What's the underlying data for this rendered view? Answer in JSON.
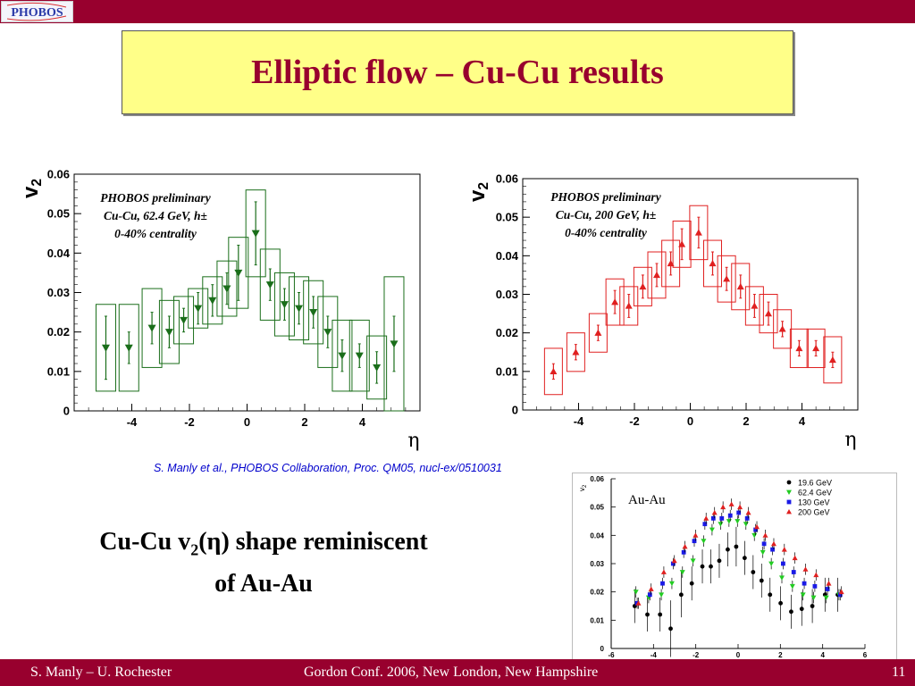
{
  "header": {
    "logo_text": "PHOBOS"
  },
  "slide": {
    "title": "Elliptic flow – Cu-Cu results",
    "citation": "S. Manly et al., PHOBOS Collaboration, Proc. QM05, nucl-ex/0510031",
    "summary": {
      "line1_pre": "Cu-Cu v",
      "line1_sub": "2",
      "line1_post": "(η) shape reminiscent",
      "line2": "of Au-Au"
    }
  },
  "footer": {
    "left": "S. Manly – U. Rochester",
    "center": "Gordon Conf. 2006, New London, New Hampshire",
    "page": "11"
  },
  "colors": {
    "bar": "#98002e",
    "title_box": "#ffff88",
    "title_text": "#98002e",
    "citation": "#0000cc",
    "green": "#1a6e1a",
    "red": "#e02020",
    "blue": "#1a1ae6",
    "lightgreen": "#22cc22"
  },
  "chart_data": [
    {
      "type": "scatter",
      "title": "",
      "annotation": [
        "PHOBOS preliminary",
        "Cu-Cu, 62.4 GeV, h±",
        "0-40% centrality"
      ],
      "xlabel": "η",
      "ylabel": "v2",
      "xlim": [
        -6,
        6
      ],
      "ylim": [
        0,
        0.06
      ],
      "xticks": [
        "-4",
        "-2",
        "0",
        "2",
        "4"
      ],
      "yticks": [
        "0",
        "0.01",
        "0.02",
        "0.03",
        "0.04",
        "0.05",
        "0.06"
      ],
      "marker": "triangle-down",
      "color": "#1a6e1a",
      "series": [
        {
          "x": [
            -4.9,
            -4.1,
            -3.3,
            -2.7,
            -2.2,
            -1.7,
            -1.2,
            -0.7,
            -0.3,
            0.3,
            0.8,
            1.3,
            1.8,
            2.3,
            2.8,
            3.3,
            3.9,
            4.5,
            5.1
          ],
          "y": [
            0.016,
            0.016,
            0.021,
            0.02,
            0.023,
            0.026,
            0.028,
            0.031,
            0.035,
            0.045,
            0.032,
            0.027,
            0.026,
            0.025,
            0.02,
            0.014,
            0.014,
            0.011,
            0.017
          ],
          "yerr": [
            0.008,
            0.004,
            0.004,
            0.004,
            0.003,
            0.004,
            0.004,
            0.004,
            0.007,
            0.008,
            0.004,
            0.004,
            0.004,
            0.004,
            0.004,
            0.004,
            0.003,
            0.004,
            0.007
          ],
          "sys": [
            0.011,
            0.011,
            0.01,
            0.008,
            0.006,
            0.005,
            0.006,
            0.007,
            0.009,
            0.011,
            0.009,
            0.008,
            0.008,
            0.008,
            0.009,
            0.009,
            0.009,
            0.008,
            0.017
          ]
        }
      ]
    },
    {
      "type": "scatter",
      "title": "",
      "annotation": [
        "PHOBOS preliminary",
        "Cu-Cu, 200 GeV, h±",
        "0-40% centrality"
      ],
      "xlabel": "η",
      "ylabel": "v2",
      "xlim": [
        -6,
        6
      ],
      "ylim": [
        0,
        0.06
      ],
      "xticks": [
        "-4",
        "-2",
        "0",
        "2",
        "4"
      ],
      "yticks": [
        "0",
        "0.01",
        "0.02",
        "0.03",
        "0.04",
        "0.05",
        "0.06"
      ],
      "marker": "triangle-up",
      "color": "#e02020",
      "series": [
        {
          "x": [
            -4.9,
            -4.1,
            -3.3,
            -2.7,
            -2.2,
            -1.7,
            -1.2,
            -0.7,
            -0.3,
            0.3,
            0.8,
            1.3,
            1.8,
            2.3,
            2.8,
            3.3,
            3.9,
            4.5,
            5.1
          ],
          "y": [
            0.01,
            0.015,
            0.02,
            0.028,
            0.027,
            0.032,
            0.035,
            0.038,
            0.043,
            0.046,
            0.038,
            0.034,
            0.032,
            0.027,
            0.025,
            0.021,
            0.016,
            0.016,
            0.013
          ],
          "yerr": [
            0.002,
            0.002,
            0.002,
            0.003,
            0.003,
            0.003,
            0.003,
            0.003,
            0.004,
            0.004,
            0.003,
            0.003,
            0.003,
            0.003,
            0.003,
            0.002,
            0.002,
            0.002,
            0.002
          ],
          "sys": [
            0.006,
            0.005,
            0.005,
            0.006,
            0.005,
            0.005,
            0.006,
            0.006,
            0.006,
            0.007,
            0.006,
            0.006,
            0.006,
            0.005,
            0.005,
            0.005,
            0.005,
            0.005,
            0.006
          ]
        }
      ]
    },
    {
      "type": "scatter",
      "title": "",
      "annotation": [
        "Au-Au"
      ],
      "xlabel": "η",
      "ylabel": "v2",
      "xlim": [
        -6,
        6
      ],
      "ylim": [
        0,
        0.06
      ],
      "xticks": [
        "-6",
        "-4",
        "-2",
        "0",
        "2",
        "4",
        "6"
      ],
      "yticks": [
        "0",
        "0.01",
        "0.02",
        "0.03",
        "0.04",
        "0.05",
        "0.06"
      ],
      "series": [
        {
          "name": "19.6 GeV",
          "color": "#000000",
          "marker": "circle",
          "x": [
            -4.8,
            -4.2,
            -3.6,
            -3.1,
            -2.6,
            -2.1,
            -1.6,
            -1.2,
            -0.8,
            -0.4,
            0.0,
            0.4,
            0.8,
            1.2,
            1.6,
            2.1,
            2.6,
            3.1,
            3.6,
            4.2,
            4.8
          ],
          "y": [
            0.015,
            0.012,
            0.012,
            0.007,
            0.019,
            0.023,
            0.029,
            0.029,
            0.031,
            0.035,
            0.036,
            0.032,
            0.027,
            0.024,
            0.019,
            0.016,
            0.013,
            0.014,
            0.015,
            0.019,
            0.019
          ],
          "yerr": [
            0.006,
            0.006,
            0.006,
            0.01,
            0.008,
            0.006,
            0.006,
            0.006,
            0.006,
            0.006,
            0.007,
            0.006,
            0.006,
            0.006,
            0.006,
            0.006,
            0.006,
            0.006,
            0.006,
            0.006,
            0.006
          ]
        },
        {
          "name": "62.4 GeV",
          "color": "#22cc22",
          "marker": "triangle-down",
          "x": [
            -4.8,
            -4.2,
            -3.6,
            -3.1,
            -2.6,
            -2.1,
            -1.6,
            -1.2,
            -0.8,
            -0.4,
            0.0,
            0.4,
            0.8,
            1.2,
            1.6,
            2.1,
            2.6,
            3.1,
            3.6,
            4.2,
            4.8
          ],
          "y": [
            0.02,
            0.018,
            0.019,
            0.023,
            0.027,
            0.031,
            0.038,
            0.042,
            0.044,
            0.045,
            0.045,
            0.044,
            0.04,
            0.034,
            0.03,
            0.025,
            0.022,
            0.019,
            0.018,
            0.018,
            0.019
          ],
          "yerr": [
            0.002,
            0.002,
            0.002,
            0.002,
            0.002,
            0.002,
            0.002,
            0.002,
            0.002,
            0.002,
            0.002,
            0.002,
            0.002,
            0.002,
            0.002,
            0.002,
            0.002,
            0.002,
            0.002,
            0.002,
            0.002
          ]
        },
        {
          "name": "130 GeV",
          "color": "#1a1ae6",
          "marker": "square",
          "x": [
            -4.8,
            -4.2,
            -3.6,
            -3.1,
            -2.6,
            -2.1,
            -1.6,
            -1.2,
            -0.8,
            -0.4,
            0.0,
            0.4,
            0.8,
            1.2,
            1.6,
            2.1,
            2.6,
            3.1,
            3.6,
            4.2,
            4.8
          ],
          "y": [
            0.016,
            0.019,
            0.023,
            0.03,
            0.034,
            0.038,
            0.044,
            0.046,
            0.046,
            0.047,
            0.048,
            0.046,
            0.042,
            0.037,
            0.035,
            0.03,
            0.027,
            0.023,
            0.022,
            0.021,
            0.019
          ],
          "yerr": [
            0.002,
            0.002,
            0.002,
            0.002,
            0.002,
            0.002,
            0.002,
            0.002,
            0.002,
            0.002,
            0.002,
            0.002,
            0.002,
            0.002,
            0.002,
            0.002,
            0.002,
            0.002,
            0.002,
            0.002,
            0.002
          ]
        },
        {
          "name": "200 GeV",
          "color": "#e02020",
          "marker": "triangle-up",
          "x": [
            -4.8,
            -4.2,
            -3.6,
            -3.1,
            -2.6,
            -2.1,
            -1.6,
            -1.2,
            -0.8,
            -0.4,
            0.0,
            0.4,
            0.8,
            1.2,
            1.6,
            2.1,
            2.6,
            3.1,
            3.6,
            4.2,
            4.8
          ],
          "y": [
            0.016,
            0.021,
            0.027,
            0.031,
            0.036,
            0.04,
            0.046,
            0.048,
            0.05,
            0.051,
            0.05,
            0.048,
            0.043,
            0.04,
            0.037,
            0.035,
            0.032,
            0.028,
            0.026,
            0.023,
            0.02
          ],
          "yerr": [
            0.002,
            0.002,
            0.002,
            0.002,
            0.002,
            0.002,
            0.002,
            0.002,
            0.002,
            0.002,
            0.002,
            0.002,
            0.002,
            0.002,
            0.002,
            0.002,
            0.002,
            0.002,
            0.002,
            0.002,
            0.002
          ]
        }
      ],
      "legend": "top-right"
    }
  ]
}
